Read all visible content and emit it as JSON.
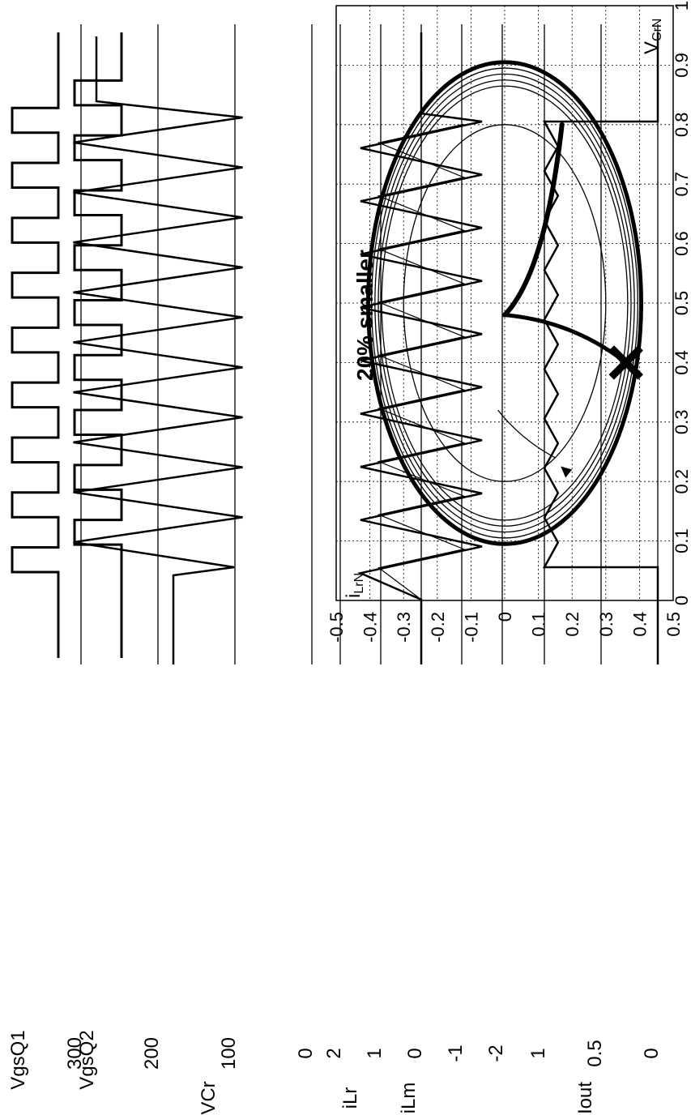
{
  "chart_data": [
    {
      "type": "line",
      "name": "phase-plane",
      "xlabel": "V_CrN",
      "ylabel": "i_LrN",
      "xlim": [
        0,
        1
      ],
      "ylim": [
        -0.5,
        0.5
      ],
      "x_ticks": [
        "0",
        "0.1",
        "0.2",
        "0.3",
        "0.4",
        "0.5",
        "0.6",
        "0.7",
        "0.8",
        "0.9",
        "1"
      ],
      "y_ticks": [
        "0.5",
        "0.4",
        "0.3",
        "0.2",
        "0.1",
        "0",
        "-0.1",
        "-0.2",
        "-0.3",
        "-0.4",
        "-0.5"
      ],
      "grid": true,
      "annotation": "20% smaller",
      "orbits": [
        {
          "center": [
            0.5,
            0.0
          ],
          "radius": 0.365
        },
        {
          "center": [
            0.5,
            0.0
          ],
          "radius": 0.375
        },
        {
          "center": [
            0.5,
            0.0
          ],
          "radius": 0.385
        },
        {
          "center": [
            0.5,
            0.0
          ],
          "radius": 0.395
        },
        {
          "center": [
            0.5,
            0.0
          ],
          "radius": 0.405
        },
        {
          "center": [
            0.5,
            0.0
          ],
          "radius": 0.3
        }
      ],
      "start_point": [
        0.8,
        0.17
      ],
      "near_zero_point": [
        0.48,
        0.0
      ],
      "marker_point": [
        0.4,
        0.36
      ]
    },
    {
      "type": "line",
      "name": "time-waveforms",
      "panels": [
        {
          "labels": [
            "VgsQ1",
            "VgsQ2"
          ],
          "signals": [
            "gate-pulses"
          ]
        },
        {
          "label": "VCr",
          "ticks": [
            "300",
            "200",
            "100",
            "0"
          ],
          "pre_value": 180,
          "osc_center": 200,
          "osc_amplitude": 110,
          "cycles": 9,
          "post_value": 280
        },
        {
          "labels": [
            "iLr",
            "iLm"
          ],
          "ticks": [
            "2",
            "1",
            "0",
            "-1",
            "-2"
          ],
          "amplitude": 1.5,
          "cycles": 9
        },
        {
          "label": "Iout",
          "ticks": [
            "1",
            "0.5",
            "0"
          ],
          "level": 1.0
        }
      ]
    }
  ]
}
